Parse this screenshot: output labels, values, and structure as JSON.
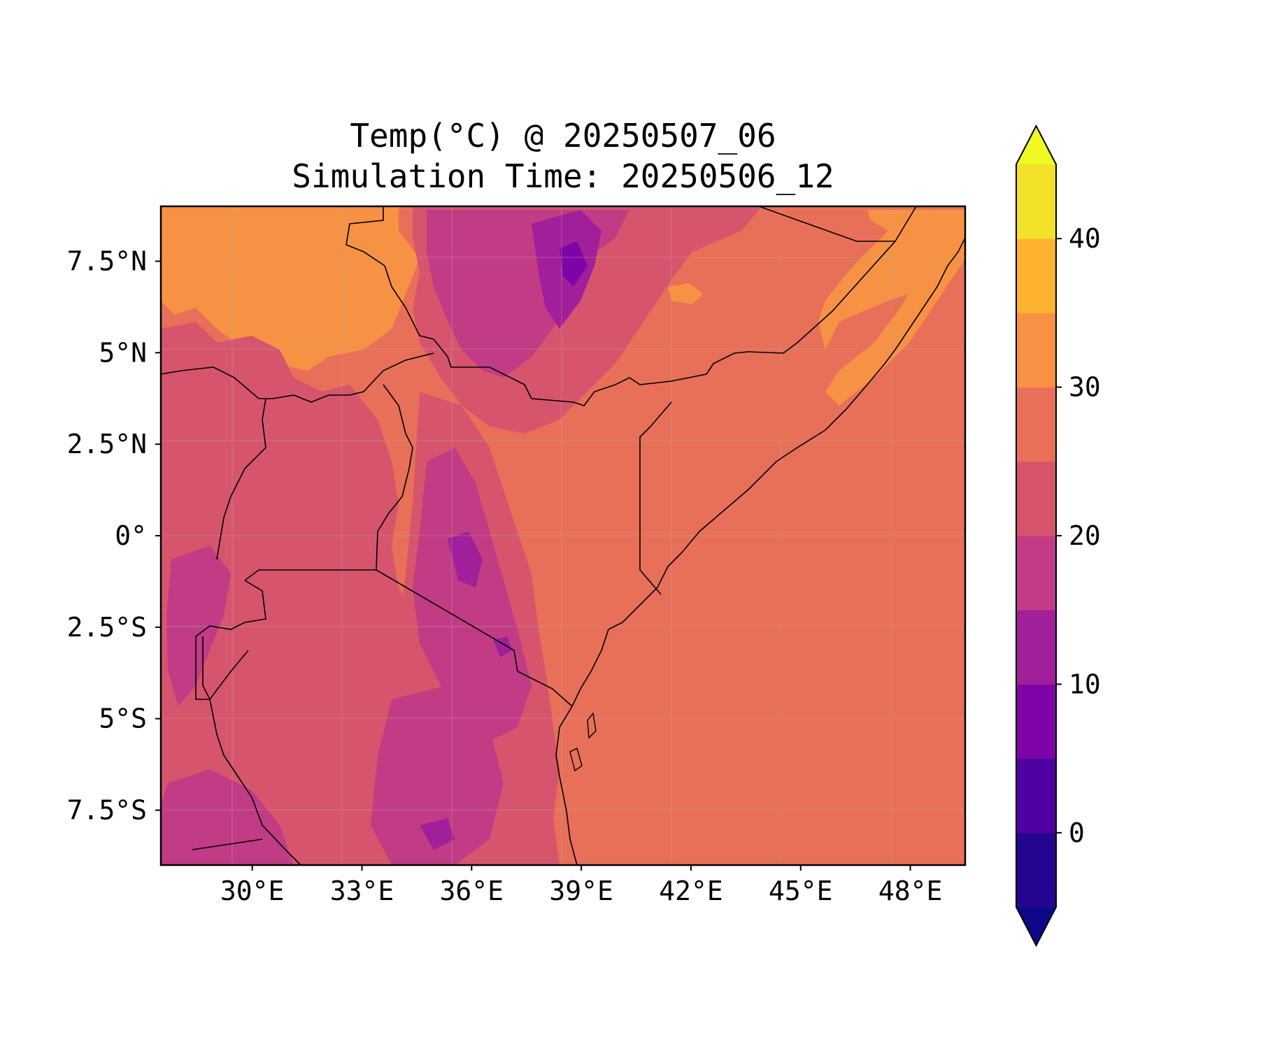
{
  "title": {
    "line1": "Temp(°C) @ 20250507_06",
    "line2": "Simulation Time: 20250506_12"
  },
  "map": {
    "lon_range": [
      27.5,
      49.5
    ],
    "lat_range": [
      -9,
      9
    ],
    "x_ticks": [
      {
        "value": 30,
        "label": "30°E"
      },
      {
        "value": 33,
        "label": "33°E"
      },
      {
        "value": 36,
        "label": "36°E"
      },
      {
        "value": 39,
        "label": "39°E"
      },
      {
        "value": 42,
        "label": "42°E"
      },
      {
        "value": 45,
        "label": "45°E"
      },
      {
        "value": 48,
        "label": "48°E"
      }
    ],
    "y_ticks": [
      {
        "value": 7.5,
        "label": "7.5°N"
      },
      {
        "value": 5,
        "label": "5°N"
      },
      {
        "value": 2.5,
        "label": "2.5°N"
      },
      {
        "value": 0,
        "label": "0°"
      },
      {
        "value": -2.5,
        "label": "2.5°S"
      },
      {
        "value": -5,
        "label": "5°S"
      },
      {
        "value": -7.5,
        "label": "7.5°S"
      }
    ],
    "gridlines": true
  },
  "colorbar": {
    "levels": [
      -5,
      0,
      5,
      10,
      15,
      20,
      25,
      30,
      35,
      40,
      45
    ],
    "colors": [
      "#23058f",
      "#4e01a0",
      "#7e04a8",
      "#a11f9a",
      "#c13c84",
      "#d6556d",
      "#e87058",
      "#f79244",
      "#fdb32f",
      "#f3e229"
    ],
    "under_color": "#0d0887",
    "over_color": "#f0f921",
    "extend": "both",
    "ticks": [
      {
        "value": 0,
        "label": "0"
      },
      {
        "value": 10,
        "label": "10"
      },
      {
        "value": 20,
        "label": "20"
      },
      {
        "value": 30,
        "label": "30"
      },
      {
        "value": 40,
        "label": "40"
      }
    ]
  }
}
